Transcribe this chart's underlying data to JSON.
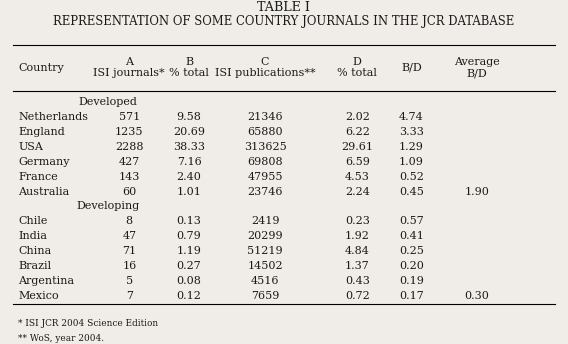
{
  "title1": "TABLE I",
  "title2": "REPRESENTATION OF SOME COUNTRY JOURNALS IN THE JCR DATABASE",
  "col_headers": [
    "Country",
    "A\nISI journals*",
    "B\n% total",
    "C\nISI publications**",
    "D\n% total",
    "B/D",
    "Average\nB/D"
  ],
  "group1_label": "Developed",
  "group1_rows": [
    [
      "Netherlands",
      "571",
      "9.58",
      "21346",
      "2.02",
      "4.74",
      ""
    ],
    [
      "England",
      "1235",
      "20.69",
      "65880",
      "6.22",
      "3.33",
      ""
    ],
    [
      "USA",
      "2288",
      "38.33",
      "313625",
      "29.61",
      "1.29",
      ""
    ],
    [
      "Germany",
      "427",
      "7.16",
      "69808",
      "6.59",
      "1.09",
      ""
    ],
    [
      "France",
      "143",
      "2.40",
      "47955",
      "4.53",
      "0.52",
      ""
    ],
    [
      "Australia",
      "60",
      "1.01",
      "23746",
      "2.24",
      "0.45",
      "1.90"
    ]
  ],
  "group2_label": "Developing",
  "group2_rows": [
    [
      "Chile",
      "8",
      "0.13",
      "2419",
      "0.23",
      "0.57",
      ""
    ],
    [
      "India",
      "47",
      "0.79",
      "20299",
      "1.92",
      "0.41",
      ""
    ],
    [
      "China",
      "71",
      "1.19",
      "51219",
      "4.84",
      "0.25",
      ""
    ],
    [
      "Brazil",
      "16",
      "0.27",
      "14502",
      "1.37",
      "0.20",
      ""
    ],
    [
      "Argentina",
      "5",
      "0.08",
      "4516",
      "0.43",
      "0.19",
      ""
    ],
    [
      "Mexico",
      "7",
      "0.12",
      "7659",
      "0.72",
      "0.17",
      "0.30"
    ]
  ],
  "footnotes": [
    "* ISI JCR 2004 Science Edition",
    "** WoS, year 2004."
  ],
  "bg_color": "#f0ede8",
  "text_color": "#1a1a1a",
  "font_size": 8.2,
  "title_font_size": 9.2
}
